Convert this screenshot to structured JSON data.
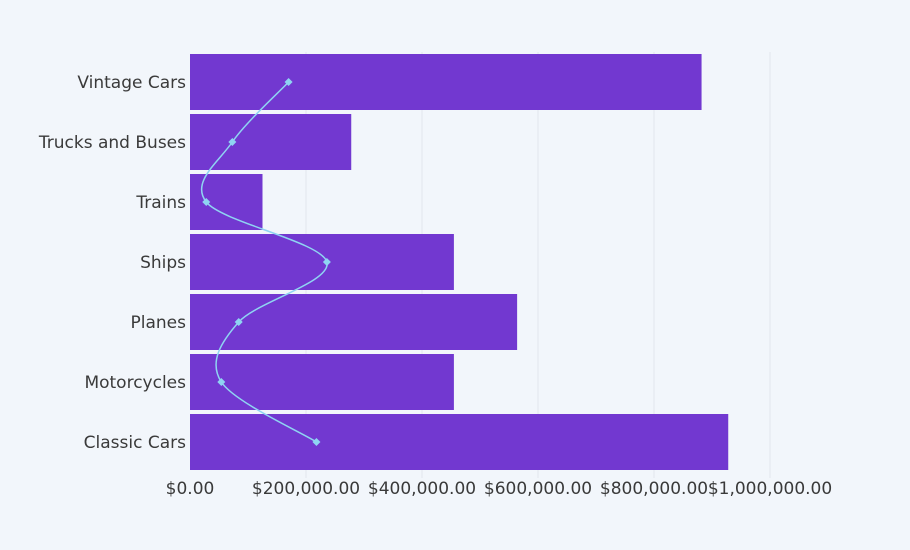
{
  "chart_data": {
    "type": "bar",
    "orientation": "horizontal",
    "categories": [
      "Vintage Cars",
      "Trucks and Buses",
      "Trains",
      "Ships",
      "Planes",
      "Motorcycles",
      "Classic Cars"
    ],
    "series": [
      {
        "type": "bar",
        "values": [
          882000,
          278000,
          125000,
          455000,
          564000,
          455000,
          928000
        ]
      },
      {
        "type": "line",
        "smooth": true,
        "values": [
          170000,
          73000,
          28000,
          236000,
          84000,
          54000,
          218000
        ]
      }
    ],
    "xlim": [
      0,
      1000000
    ],
    "xticks": [
      0,
      200000,
      400000,
      600000,
      800000,
      1000000
    ],
    "xtick_labels": [
      "$0.00",
      "$200,000.00",
      "$400,000.00",
      "$600,000.00",
      "$800,000.00",
      "$1,000,000.00"
    ],
    "grid": "vertical",
    "title": "",
    "xlabel": "",
    "ylabel": "",
    "colors": {
      "bar": "#7238d0",
      "line": "#8fd4f2",
      "background": "#f2f6fb",
      "grid": "#e1e6ee",
      "text": "#3a3a3a"
    }
  }
}
